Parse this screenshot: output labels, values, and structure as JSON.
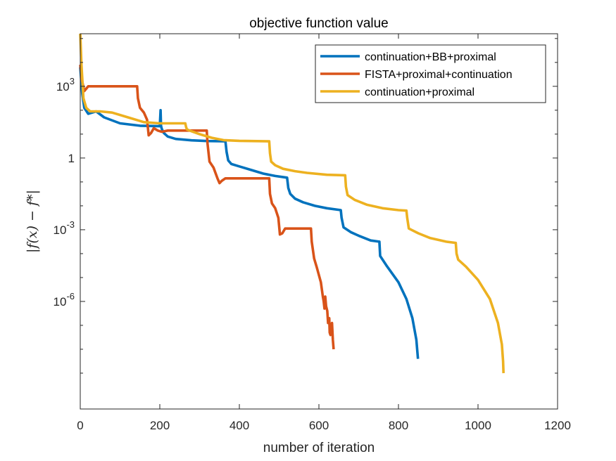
{
  "chart_data": {
    "type": "line",
    "title": "objective function value",
    "xlabel": "number of iteration",
    "ylabel": "|f(x) − f*|",
    "xlim": [
      0,
      1200
    ],
    "ylim_log10": [
      -10.5,
      5.2
    ],
    "yscale": "log",
    "x_ticks": [
      0,
      200,
      400,
      600,
      800,
      1000,
      1200
    ],
    "x_tick_labels": [
      "0",
      "200",
      "400",
      "600",
      "800",
      "1000",
      "1200"
    ],
    "y_major_ticks_log10": [
      3,
      0,
      -3,
      -6
    ],
    "y_tick_labels": [
      "10^3",
      "1",
      "10^-3",
      "10^-6"
    ],
    "y_minor_ticks_log10": [
      5,
      4,
      2,
      1,
      -1,
      -2,
      -4,
      -5,
      -7,
      -8,
      -9
    ],
    "grid": false,
    "legend_position": "top-right",
    "series": [
      {
        "name": "continuation+BB+proximal",
        "color": "#0072BD",
        "points": [
          [
            0,
            3.8
          ],
          [
            5,
            2.7
          ],
          [
            10,
            2.1
          ],
          [
            20,
            1.85
          ],
          [
            40,
            1.95
          ],
          [
            60,
            1.7
          ],
          [
            100,
            1.45
          ],
          [
            150,
            1.35
          ],
          [
            200,
            1.33
          ],
          [
            202,
            2.0
          ],
          [
            203,
            1.35
          ],
          [
            205,
            1.22
          ],
          [
            210,
            1.05
          ],
          [
            220,
            0.9
          ],
          [
            240,
            0.8
          ],
          [
            280,
            0.74
          ],
          [
            320,
            0.71
          ],
          [
            365,
            0.7
          ],
          [
            368,
            0.25
          ],
          [
            372,
            -0.1
          ],
          [
            380,
            -0.25
          ],
          [
            400,
            -0.35
          ],
          [
            430,
            -0.5
          ],
          [
            460,
            -0.65
          ],
          [
            490,
            -0.75
          ],
          [
            520,
            -0.82
          ],
          [
            523,
            -1.25
          ],
          [
            528,
            -1.5
          ],
          [
            540,
            -1.7
          ],
          [
            560,
            -1.85
          ],
          [
            590,
            -2.0
          ],
          [
            620,
            -2.1
          ],
          [
            655,
            -2.18
          ],
          [
            657,
            -2.5
          ],
          [
            662,
            -2.9
          ],
          [
            680,
            -3.1
          ],
          [
            700,
            -3.25
          ],
          [
            730,
            -3.45
          ],
          [
            752,
            -3.5
          ],
          [
            754,
            -4.1
          ],
          [
            770,
            -4.5
          ],
          [
            800,
            -5.2
          ],
          [
            820,
            -5.9
          ],
          [
            835,
            -6.7
          ],
          [
            845,
            -7.6
          ],
          [
            849,
            -8.4
          ]
        ]
      },
      {
        "name": "FISTA+proximal+continuation",
        "color": "#D95319",
        "points": [
          [
            0,
            3.9
          ],
          [
            5,
            3.2
          ],
          [
            10,
            2.8
          ],
          [
            15,
            2.9
          ],
          [
            20,
            3.0
          ],
          [
            50,
            3.0
          ],
          [
            100,
            3.0
          ],
          [
            143,
            3.0
          ],
          [
            145,
            2.5
          ],
          [
            150,
            2.1
          ],
          [
            160,
            1.9
          ],
          [
            168,
            1.6
          ],
          [
            172,
            0.95
          ],
          [
            178,
            1.05
          ],
          [
            185,
            1.25
          ],
          [
            195,
            1.15
          ],
          [
            205,
            1.1
          ],
          [
            220,
            1.15
          ],
          [
            250,
            1.15
          ],
          [
            290,
            1.15
          ],
          [
            318,
            1.15
          ],
          [
            320,
            0.6
          ],
          [
            325,
            -0.15
          ],
          [
            335,
            -0.4
          ],
          [
            345,
            -0.85
          ],
          [
            350,
            -1.05
          ],
          [
            356,
            -0.95
          ],
          [
            365,
            -0.85
          ],
          [
            380,
            -0.85
          ],
          [
            420,
            -0.85
          ],
          [
            470,
            -0.85
          ],
          [
            475,
            -0.85
          ],
          [
            477,
            -1.5
          ],
          [
            482,
            -1.9
          ],
          [
            490,
            -2.1
          ],
          [
            498,
            -2.5
          ],
          [
            502,
            -3.2
          ],
          [
            508,
            -3.15
          ],
          [
            515,
            -2.95
          ],
          [
            530,
            -2.95
          ],
          [
            555,
            -2.95
          ],
          [
            580,
            -2.95
          ],
          [
            582,
            -3.5
          ],
          [
            588,
            -4.2
          ],
          [
            595,
            -4.6
          ],
          [
            605,
            -5.2
          ],
          [
            610,
            -5.8
          ],
          [
            612,
            -6.0
          ],
          [
            614,
            -6.3
          ],
          [
            616,
            -5.8
          ],
          [
            618,
            -6.2
          ],
          [
            621,
            -6.4
          ],
          [
            623,
            -6.9
          ],
          [
            626,
            -6.7
          ],
          [
            627,
            -7.3
          ],
          [
            629,
            -7.4
          ],
          [
            631,
            -7.0
          ],
          [
            633,
            -6.9
          ],
          [
            635,
            -7.6
          ],
          [
            637,
            -8.0
          ]
        ]
      },
      {
        "name": "continuation+proximal",
        "color": "#EDB120",
        "points": [
          [
            0,
            5.2
          ],
          [
            3,
            3.9
          ],
          [
            8,
            2.5
          ],
          [
            15,
            2.1
          ],
          [
            25,
            1.95
          ],
          [
            50,
            1.95
          ],
          [
            80,
            1.9
          ],
          [
            120,
            1.7
          ],
          [
            160,
            1.5
          ],
          [
            200,
            1.45
          ],
          [
            264,
            1.45
          ],
          [
            266,
            1.3
          ],
          [
            268,
            1.2
          ],
          [
            275,
            1.15
          ],
          [
            300,
            1.0
          ],
          [
            330,
            0.85
          ],
          [
            360,
            0.75
          ],
          [
            400,
            0.72
          ],
          [
            475,
            0.7
          ],
          [
            477,
            0.2
          ],
          [
            480,
            -0.15
          ],
          [
            490,
            -0.3
          ],
          [
            510,
            -0.45
          ],
          [
            540,
            -0.55
          ],
          [
            570,
            -0.62
          ],
          [
            620,
            -0.7
          ],
          [
            666,
            -0.72
          ],
          [
            668,
            -1.2
          ],
          [
            672,
            -1.55
          ],
          [
            690,
            -1.75
          ],
          [
            720,
            -1.95
          ],
          [
            760,
            -2.1
          ],
          [
            800,
            -2.18
          ],
          [
            820,
            -2.2
          ],
          [
            822,
            -2.5
          ],
          [
            826,
            -2.95
          ],
          [
            850,
            -3.15
          ],
          [
            880,
            -3.35
          ],
          [
            920,
            -3.5
          ],
          [
            944,
            -3.55
          ],
          [
            946,
            -4.0
          ],
          [
            950,
            -4.25
          ],
          [
            970,
            -4.55
          ],
          [
            1000,
            -5.1
          ],
          [
            1030,
            -5.9
          ],
          [
            1050,
            -6.9
          ],
          [
            1060,
            -7.8
          ],
          [
            1063,
            -8.5
          ],
          [
            1064,
            -9.0
          ]
        ]
      }
    ]
  }
}
